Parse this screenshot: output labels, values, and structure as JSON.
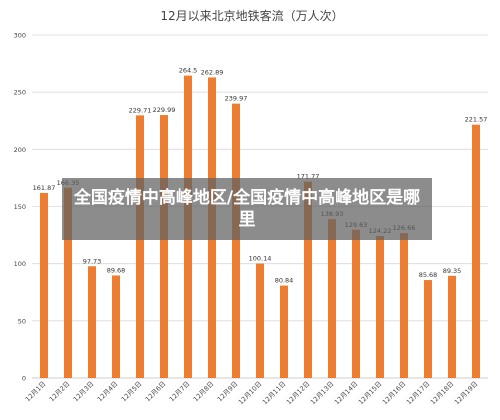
{
  "chart_data": {
    "type": "bar",
    "title": "12月以来北京地铁客流（万人次）",
    "categories": [
      "12月1日",
      "12月2日",
      "12月3日",
      "12月4日",
      "12月5日",
      "12月6日",
      "12月7日",
      "12月8日",
      "12月9日",
      "12月10日",
      "12月11日",
      "12月12日",
      "12月13日",
      "12月14日",
      "12月15日",
      "12月16日",
      "12月17日",
      "12月18日",
      "12月19日"
    ],
    "values": [
      161.87,
      166.35,
      97.73,
      89.68,
      229.71,
      229.99,
      264.5,
      262.89,
      239.97,
      100.14,
      80.84,
      171.77,
      138.93,
      129.63,
      124.22,
      126.66,
      85.68,
      89.35,
      221.57
    ],
    "value_labels": [
      "161.87",
      "166.35",
      "97.73",
      "89.68",
      "229.71",
      "229.99",
      "264.5",
      "262.89",
      "239.97",
      "100.14",
      "80.84",
      "171.77",
      "138.93",
      "129.63",
      "124.22",
      "126.66",
      "85.68",
      "89.35",
      "221.57"
    ],
    "yticks": [
      "0",
      "50",
      "100",
      "150",
      "200",
      "250",
      "300"
    ],
    "ylim": [
      0,
      300
    ],
    "grid": true,
    "bar_color": "#ED7D31"
  },
  "overlay": {
    "text": "全国疫情中高峰地区/全国疫情中高峰地区是哪里"
  }
}
